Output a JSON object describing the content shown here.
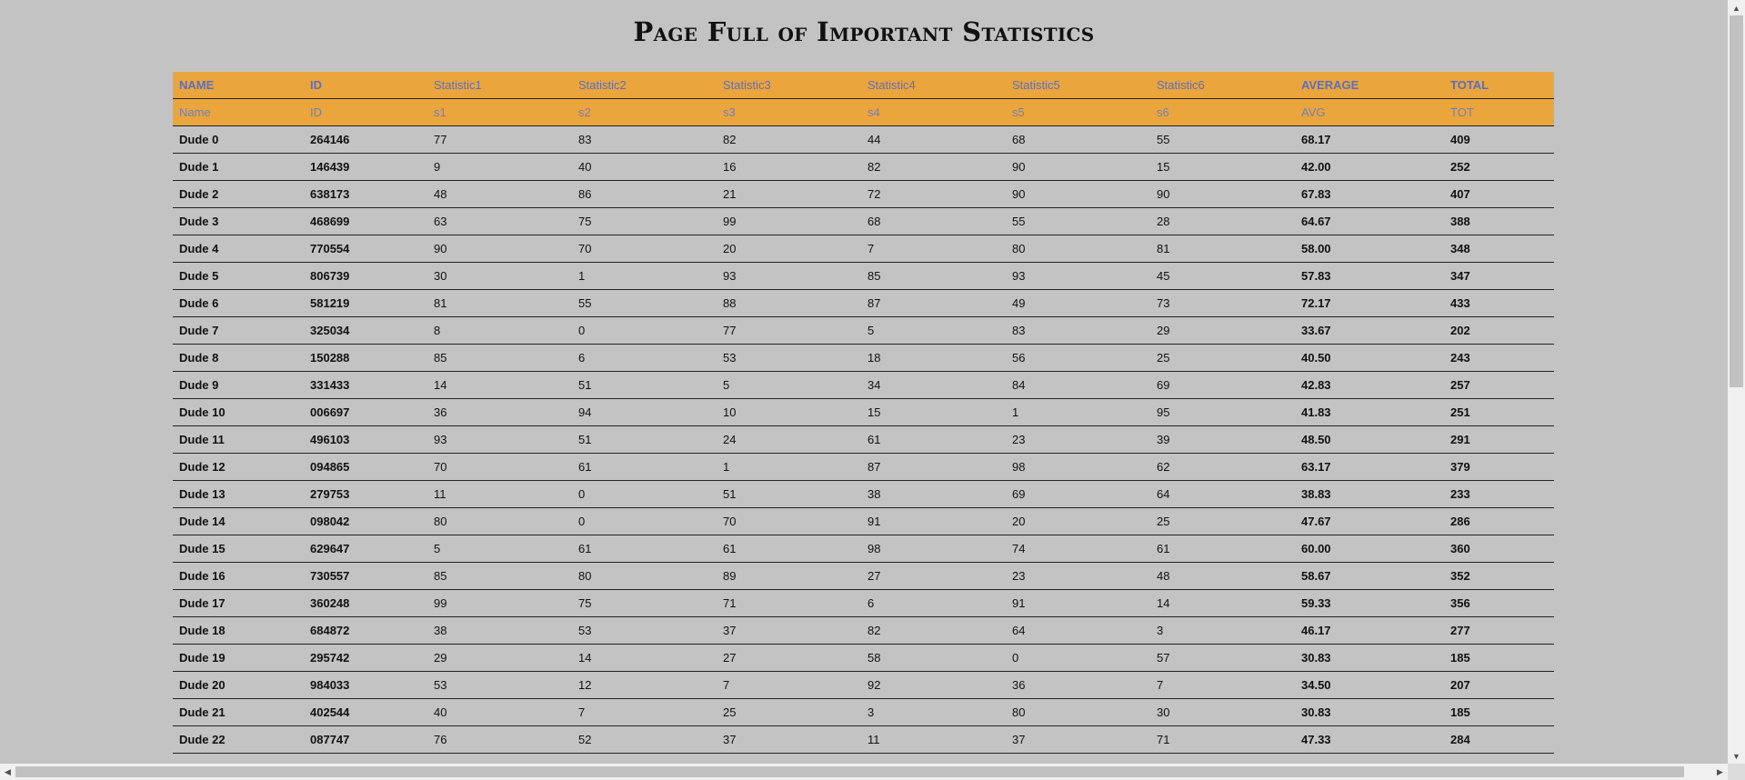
{
  "page": {
    "title": "Page Full of Important Statistics"
  },
  "table": {
    "columns": [
      {
        "label": "NAME",
        "code": "Name",
        "strong": true
      },
      {
        "label": "ID",
        "code": "ID",
        "strong": true
      },
      {
        "label": "Statistic1",
        "code": "s1",
        "strong": false
      },
      {
        "label": "Statistic2",
        "code": "s2",
        "strong": false
      },
      {
        "label": "Statistic3",
        "code": "s3",
        "strong": false
      },
      {
        "label": "Statistic4",
        "code": "s4",
        "strong": false
      },
      {
        "label": "Statistic5",
        "code": "s5",
        "strong": false
      },
      {
        "label": "Statistic6",
        "code": "s6",
        "strong": false
      },
      {
        "label": "AVERAGE",
        "code": "AVG",
        "strong": true
      },
      {
        "label": "TOTAL",
        "code": "TOT",
        "strong": true
      }
    ],
    "rows": [
      [
        "Dude 0",
        "264146",
        "77",
        "83",
        "82",
        "44",
        "68",
        "55",
        "68.17",
        "409"
      ],
      [
        "Dude 1",
        "146439",
        "9",
        "40",
        "16",
        "82",
        "90",
        "15",
        "42.00",
        "252"
      ],
      [
        "Dude 2",
        "638173",
        "48",
        "86",
        "21",
        "72",
        "90",
        "90",
        "67.83",
        "407"
      ],
      [
        "Dude 3",
        "468699",
        "63",
        "75",
        "99",
        "68",
        "55",
        "28",
        "64.67",
        "388"
      ],
      [
        "Dude 4",
        "770554",
        "90",
        "70",
        "20",
        "7",
        "80",
        "81",
        "58.00",
        "348"
      ],
      [
        "Dude 5",
        "806739",
        "30",
        "1",
        "93",
        "85",
        "93",
        "45",
        "57.83",
        "347"
      ],
      [
        "Dude 6",
        "581219",
        "81",
        "55",
        "88",
        "87",
        "49",
        "73",
        "72.17",
        "433"
      ],
      [
        "Dude 7",
        "325034",
        "8",
        "0",
        "77",
        "5",
        "83",
        "29",
        "33.67",
        "202"
      ],
      [
        "Dude 8",
        "150288",
        "85",
        "6",
        "53",
        "18",
        "56",
        "25",
        "40.50",
        "243"
      ],
      [
        "Dude 9",
        "331433",
        "14",
        "51",
        "5",
        "34",
        "84",
        "69",
        "42.83",
        "257"
      ],
      [
        "Dude 10",
        "006697",
        "36",
        "94",
        "10",
        "15",
        "1",
        "95",
        "41.83",
        "251"
      ],
      [
        "Dude 11",
        "496103",
        "93",
        "51",
        "24",
        "61",
        "23",
        "39",
        "48.50",
        "291"
      ],
      [
        "Dude 12",
        "094865",
        "70",
        "61",
        "1",
        "87",
        "98",
        "62",
        "63.17",
        "379"
      ],
      [
        "Dude 13",
        "279753",
        "11",
        "0",
        "51",
        "38",
        "69",
        "64",
        "38.83",
        "233"
      ],
      [
        "Dude 14",
        "098042",
        "80",
        "0",
        "70",
        "91",
        "20",
        "25",
        "47.67",
        "286"
      ],
      [
        "Dude 15",
        "629647",
        "5",
        "61",
        "61",
        "98",
        "74",
        "61",
        "60.00",
        "360"
      ],
      [
        "Dude 16",
        "730557",
        "85",
        "80",
        "89",
        "27",
        "23",
        "48",
        "58.67",
        "352"
      ],
      [
        "Dude 17",
        "360248",
        "99",
        "75",
        "71",
        "6",
        "91",
        "14",
        "59.33",
        "356"
      ],
      [
        "Dude 18",
        "684872",
        "38",
        "53",
        "37",
        "82",
        "64",
        "3",
        "46.17",
        "277"
      ],
      [
        "Dude 19",
        "295742",
        "29",
        "14",
        "27",
        "58",
        "0",
        "57",
        "30.83",
        "185"
      ],
      [
        "Dude 20",
        "984033",
        "53",
        "12",
        "7",
        "92",
        "36",
        "7",
        "34.50",
        "207"
      ],
      [
        "Dude 21",
        "402544",
        "40",
        "7",
        "25",
        "3",
        "80",
        "30",
        "30.83",
        "185"
      ],
      [
        "Dude 22",
        "087747",
        "76",
        "52",
        "37",
        "11",
        "37",
        "71",
        "47.33",
        "284"
      ]
    ]
  },
  "scrollbars": {
    "vertical_up_icon": "triangle-up-icon",
    "vertical_down_icon": "triangle-down-icon",
    "horizontal_left_icon": "triangle-left-icon",
    "horizontal_right_icon": "triangle-right-icon"
  }
}
